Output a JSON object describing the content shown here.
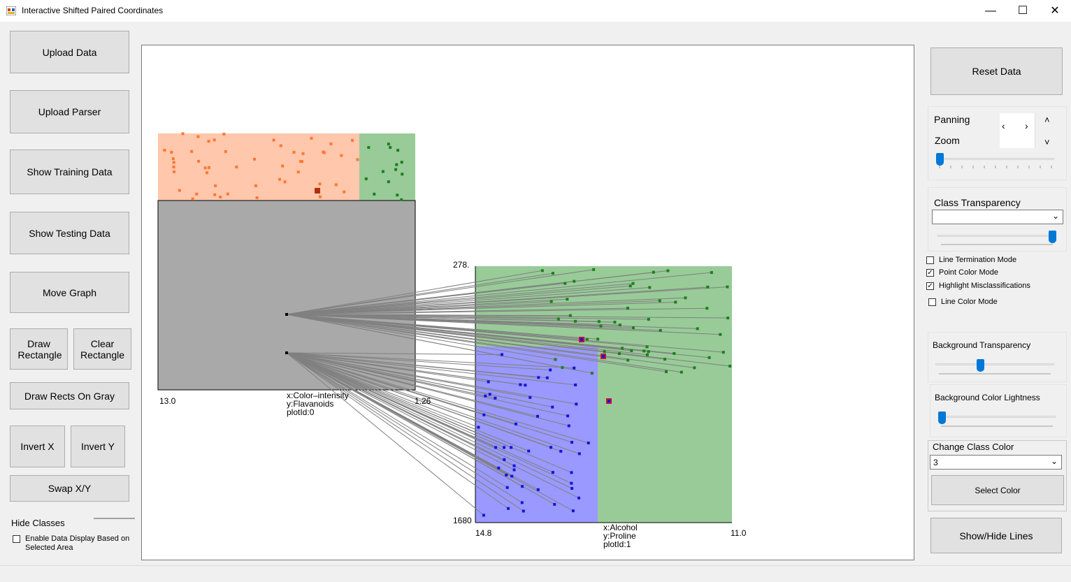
{
  "window": {
    "title": "Interactive Shifted Paired Coordinates"
  },
  "left_panel": {
    "upload_data": "Upload Data",
    "upload_parser": "Upload Parser",
    "show_training": "Show Training Data",
    "show_testing": "Show Testing Data",
    "move_graph": "Move Graph",
    "draw_rect": "Draw Rectangle",
    "clear_rect": "Clear Rectangle",
    "draw_rects_gray": "Draw Rects On Gray",
    "invert_x": "Invert X",
    "invert_y": "Invert Y",
    "swap_xy": "Swap X/Y",
    "hide_classes": "Hide Classes",
    "enable_display": "Enable Data Display Based on Selected Area",
    "enable_display_checked": false
  },
  "right_panel": {
    "reset_data": "Reset Data",
    "panning": "Panning",
    "zoom": "Zoom",
    "zoom_level": 0,
    "class_transparency": "Class Transparency",
    "class_transparency_selected": "",
    "class_transparency_level": 1,
    "line_termination": "Line Termination Mode",
    "line_termination_checked": false,
    "point_color": "Point Color Mode",
    "point_color_checked": true,
    "highlight_mis": "Highlight Misclassifications",
    "highlight_mis_checked": true,
    "line_color": "Line Color Mode",
    "line_color_checked": false,
    "bg_transparency": "Background Transparency",
    "bg_transparency_level": 0.37,
    "bg_lightness": "Background Color Lightness",
    "bg_lightness_level": 0,
    "change_class_color": "Change Class Color",
    "class_selected": "3",
    "select_color": "Select Color",
    "show_hide_lines": "Show/Hide Lines"
  },
  "colors": {
    "class1": "#ff9966",
    "class2": "#1e7e1e",
    "class3": "#1414dc",
    "gray_region": "#a9a9a9",
    "green_region": "#98cb98",
    "blue_region": "#9999ff",
    "misclass": "#c0143c"
  },
  "plot0": {
    "x_attr": "x:Color–intensity",
    "y_attr": "y:Flavanoids",
    "plot_id": "plotId:0",
    "x_min_label": "13.0",
    "x_max_label": "1.26"
  },
  "plot1": {
    "x_attr": "x:Alcohol",
    "y_attr": "y:Proline",
    "plot_id": "plotId:1",
    "x_min_label": "14.8",
    "x_max_label": "11.0",
    "y_top_label": "278.",
    "y_bottom_label": "1680"
  }
}
